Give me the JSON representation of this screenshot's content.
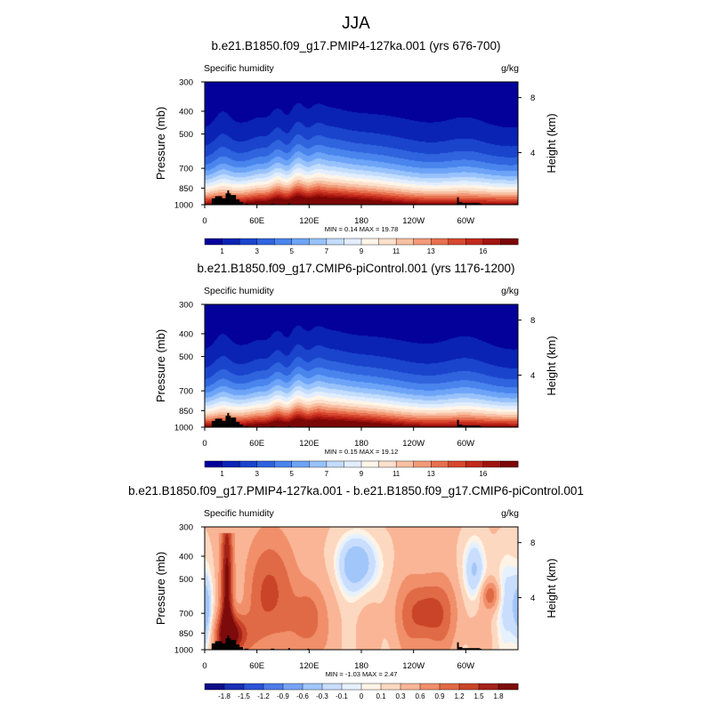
{
  "figure": {
    "title": "JJA"
  },
  "colors": {
    "sequential": [
      "#04009a",
      "#0a23b4",
      "#1a44cc",
      "#2f64de",
      "#4a85ee",
      "#6da4f7",
      "#98c2fb",
      "#c2dcfd",
      "#e2eeff",
      "#fff5e8",
      "#fde0cc",
      "#f8c0a2",
      "#f29a78",
      "#e8704f",
      "#d8482f",
      "#c22a1b",
      "#a2140f",
      "#7b0606"
    ],
    "diverging": [
      "#0d0d8a",
      "#1a2fb4",
      "#2c52d6",
      "#4d7ce8",
      "#76a3f3",
      "#a1c6fa",
      "#c9ddfd",
      "#e6f1ff",
      "#fff3e6",
      "#fdd8c0",
      "#f9b595",
      "#f08f6a",
      "#e06a45",
      "#c94428",
      "#a42217",
      "#7d0b0b"
    ],
    "topography": "#000000"
  },
  "chart_data": [
    {
      "type": "heatmap",
      "title": "b.e21.B1850.f09_g17.PMIP4-127ka.001 (yrs 676-700)",
      "left_label": "Specific humidity",
      "right_label": "g/kg",
      "ylabel": "Pressure (mb)",
      "y2label": "Height (km)",
      "y_ticks": [
        "300",
        "400",
        "500",
        "700",
        "850",
        "1000"
      ],
      "y2_ticks": [
        "8",
        "4"
      ],
      "x_ticks": [
        "0",
        "60E",
        "120E",
        "180",
        "120W",
        "60W"
      ],
      "xlim": [
        0,
        360
      ],
      "ylim": [
        1000,
        300
      ],
      "stats": "MIN =   0.14  MAX =  19.78",
      "colorbar_labels": [
        "1",
        "3",
        "5",
        "7",
        "9",
        "11",
        "13",
        "16"
      ],
      "min": 0.14,
      "max": 19.78
    },
    {
      "type": "heatmap",
      "title": "b.e21.B1850.f09_g17.CMIP6-piControl.001 (yrs 1176-1200)",
      "left_label": "Specific humidity",
      "right_label": "g/kg",
      "ylabel": "Pressure (mb)",
      "y2label": "Height (km)",
      "y_ticks": [
        "300",
        "400",
        "500",
        "700",
        "850",
        "1000"
      ],
      "y2_ticks": [
        "8",
        "4"
      ],
      "x_ticks": [
        "0",
        "60E",
        "120E",
        "180",
        "120W",
        "60W"
      ],
      "xlim": [
        0,
        360
      ],
      "ylim": [
        1000,
        300
      ],
      "stats": "MIN =   0.15  MAX =  19.12",
      "colorbar_labels": [
        "1",
        "3",
        "5",
        "7",
        "9",
        "11",
        "13",
        "16"
      ],
      "min": 0.15,
      "max": 19.12
    },
    {
      "type": "heatmap",
      "title": "b.e21.B1850.f09_g17.PMIP4-127ka.001 - b.e21.B1850.f09_g17.CMIP6-piControl.001",
      "left_label": "Specific humidity",
      "right_label": "g/kg",
      "ylabel": "Pressure (mb)",
      "y2label": "Height (km)",
      "y_ticks": [
        "300",
        "400",
        "500",
        "700",
        "850",
        "1000"
      ],
      "y2_ticks": [
        "8",
        "4"
      ],
      "x_ticks": [
        "0",
        "60E",
        "120E",
        "180",
        "120W",
        "60W"
      ],
      "xlim": [
        0,
        360
      ],
      "ylim": [
        1000,
        300
      ],
      "stats": "MIN =  -1.03  MAX =   2.47",
      "colorbar_labels": [
        "-1.8",
        "-1.5",
        "-1.2",
        "-0.9",
        "-0.6",
        "-0.3",
        "-0.1",
        "0",
        "0.1",
        "0.3",
        "0.6",
        "0.9",
        "1.2",
        "1.5",
        "1.8"
      ],
      "min": -1.03,
      "max": 2.47
    }
  ]
}
